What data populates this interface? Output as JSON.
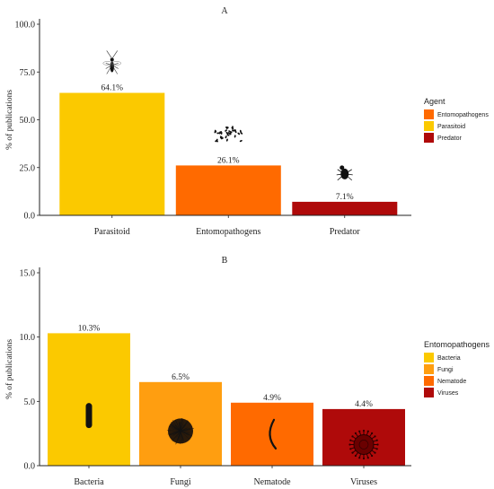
{
  "chart_data": [
    {
      "panel": "A",
      "type": "bar",
      "title": "A",
      "ylabel": "% of publications",
      "xlabel": "",
      "ylim": [
        0,
        100
      ],
      "yticks": [
        "0.0",
        "25.0",
        "50.0",
        "75.0",
        "100.0"
      ],
      "categories": [
        "Parasitoid",
        "Entomopathogens",
        "Predator"
      ],
      "values": [
        64.1,
        26.1,
        7.1
      ],
      "data_labels": [
        "64.1%",
        "26.1%",
        "7.1%"
      ],
      "colors": [
        "#FBC900",
        "#FF6A00",
        "#AF0A0A"
      ],
      "grid": false,
      "legend": {
        "position": "right",
        "title": "Agent",
        "entries": [
          {
            "label": "Entomopathogens",
            "color": "#FF6A00"
          },
          {
            "label": "Parasitoid",
            "color": "#FBC900"
          },
          {
            "label": "Predator",
            "color": "#AF0A0A"
          }
        ]
      },
      "icons": [
        "wasp-icon",
        "spores-icon",
        "beetle-icon"
      ]
    },
    {
      "panel": "B",
      "type": "bar",
      "title": "B",
      "ylabel": "% of publications",
      "xlabel": "",
      "ylim": [
        0,
        15
      ],
      "yticks": [
        "0.0",
        "5.0",
        "10.0",
        "15.0"
      ],
      "categories": [
        "Bacteria",
        "Fungi",
        "Nematode",
        "Viruses"
      ],
      "values": [
        10.3,
        6.5,
        4.9,
        4.4
      ],
      "data_labels": [
        "10.3%",
        "6.5%",
        "4.9%",
        "4.4%"
      ],
      "colors": [
        "#FBC900",
        "#FF9E10",
        "#FF6A00",
        "#AF0A0A"
      ],
      "grid": false,
      "legend": {
        "position": "right",
        "title": "Entomopathogens",
        "entries": [
          {
            "label": "Bacteria",
            "color": "#FBC900"
          },
          {
            "label": "Fungi",
            "color": "#FF9E10"
          },
          {
            "label": "Nematode",
            "color": "#FF6A00"
          },
          {
            "label": "Viruses",
            "color": "#AF0A0A"
          }
        ]
      },
      "icons": [
        "bacterium-icon",
        "fungus-colony-icon",
        "nematode-icon",
        "virus-icon"
      ]
    }
  ]
}
